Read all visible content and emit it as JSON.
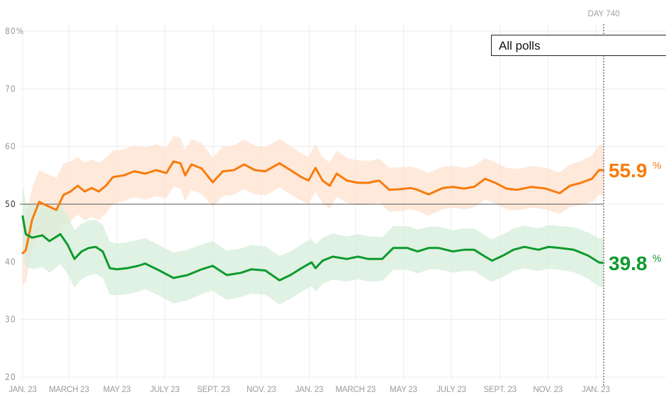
{
  "filter": {
    "selected": "All polls"
  },
  "chart_data": {
    "type": "line",
    "title": "",
    "xlabel": "",
    "ylabel": "",
    "ylim": [
      20,
      80
    ],
    "y_ticks": [
      20,
      30,
      40,
      50,
      60,
      70,
      80
    ],
    "y_tick_labels": [
      "20",
      "30",
      "40",
      "50",
      "60",
      "70",
      "80%"
    ],
    "x_range_days": [
      0,
      740
    ],
    "x_ticks": [
      {
        "day": 0,
        "label": "JAN. 23"
      },
      {
        "day": 59,
        "label": "MARCH 23"
      },
      {
        "day": 120,
        "label": "MAY 23"
      },
      {
        "day": 181,
        "label": "JULY 23"
      },
      {
        "day": 243,
        "label": "SEPT. 23"
      },
      {
        "day": 304,
        "label": "NOV. 23"
      },
      {
        "day": 365,
        "label": "JAN. 23"
      },
      {
        "day": 424,
        "label": "MARCH 23"
      },
      {
        "day": 485,
        "label": "MAY 23"
      },
      {
        "day": 546,
        "label": "JULY 23"
      },
      {
        "day": 608,
        "label": "SEPT. 23"
      },
      {
        "day": 669,
        "label": "NOV. 23"
      },
      {
        "day": 730,
        "label": "JAN. 23"
      }
    ],
    "reference_line": 50,
    "marker": {
      "day": 740,
      "label": "DAY 740"
    },
    "grid": true,
    "series": [
      {
        "name": "orange-series",
        "color": "#f87b0b",
        "band_color": "#fde2cf",
        "final_value": "55.9",
        "final_suffix": "%",
        "days": [
          0,
          4,
          12,
          21,
          30,
          43,
          52,
          61,
          70,
          79,
          88,
          97,
          106,
          115,
          129,
          142,
          156,
          170,
          183,
          192,
          201,
          207,
          215,
          228,
          242,
          255,
          269,
          282,
          296,
          309,
          327,
          341,
          355,
          364,
          373,
          382,
          391,
          400,
          413,
          427,
          440,
          454,
          467,
          481,
          494,
          503,
          517,
          535,
          548,
          562,
          575,
          589,
          602,
          616,
          630,
          648,
          666,
          684,
          697,
          711,
          725,
          734,
          740
        ],
        "values": [
          41.5,
          42,
          47.3,
          50.4,
          49.8,
          49,
          51.6,
          52.2,
          53.2,
          52.2,
          52.8,
          52.2,
          53.2,
          54.7,
          55,
          55.7,
          55.3,
          55.9,
          55.4,
          57.4,
          57.1,
          55,
          56.9,
          56.2,
          53.8,
          55.7,
          55.9,
          56.9,
          55.9,
          55.7,
          57.1,
          55.9,
          54.7,
          54.1,
          56.3,
          54.1,
          53.2,
          55.3,
          54.1,
          53.7,
          53.7,
          54.1,
          52.5,
          52.6,
          52.8,
          52.5,
          51.7,
          52.8,
          53,
          52.7,
          53,
          54.4,
          53.7,
          52.7,
          52.5,
          53,
          52.7,
          51.9,
          53.2,
          53.7,
          54.4,
          55.9,
          55.9
        ],
        "band_half_width": [
          5.5,
          5.5,
          5.5,
          5.5,
          5.5,
          5.5,
          5.5,
          5.2,
          5,
          5,
          5,
          5,
          4.8,
          4.6,
          4.5,
          4.5,
          4.5,
          4.5,
          4.4,
          4.4,
          4.4,
          4.4,
          4.4,
          4.4,
          4.3,
          4.3,
          4.3,
          4.3,
          4.2,
          4.2,
          4.2,
          4.2,
          4.1,
          4.1,
          4.1,
          4,
          4,
          4,
          3.9,
          3.9,
          3.8,
          3.8,
          3.8,
          3.8,
          3.7,
          3.7,
          3.7,
          3.7,
          3.6,
          3.6,
          3.6,
          3.6,
          3.6,
          3.6,
          3.6,
          3.6,
          3.6,
          3.6,
          3.7,
          3.8,
          4,
          4.3,
          4.5
        ]
      },
      {
        "name": "green-series",
        "color": "#0d9a2d",
        "band_color": "#d6edd9",
        "final_value": "39.8",
        "final_suffix": "%",
        "days": [
          0,
          4,
          12,
          25,
          34,
          48,
          57,
          66,
          75,
          84,
          93,
          102,
          111,
          120,
          133,
          147,
          156,
          174,
          192,
          210,
          228,
          242,
          251,
          260,
          278,
          291,
          309,
          327,
          341,
          355,
          368,
          373,
          382,
          395,
          413,
          427,
          440,
          458,
          472,
          490,
          503,
          517,
          530,
          548,
          562,
          575,
          589,
          598,
          612,
          625,
          639,
          657,
          670,
          684,
          702,
          720,
          734,
          740
        ],
        "values": [
          47.9,
          44.8,
          44.2,
          44.6,
          43.6,
          44.8,
          43,
          40.5,
          41.8,
          42.4,
          42.6,
          41.8,
          38.9,
          38.7,
          38.9,
          39.3,
          39.7,
          38.5,
          37.2,
          37.7,
          38.7,
          39.3,
          38.5,
          37.7,
          38.1,
          38.7,
          38.5,
          36.8,
          37.7,
          38.9,
          39.9,
          38.9,
          40.2,
          40.9,
          40.5,
          40.9,
          40.5,
          40.5,
          42.4,
          42.4,
          41.8,
          42.4,
          42.4,
          41.8,
          42.1,
          42.1,
          40.9,
          40.2,
          41.1,
          42.1,
          42.6,
          42.1,
          42.6,
          42.4,
          42.1,
          41.1,
          39.9,
          39.8
        ],
        "band_half_width": [
          5.5,
          5.5,
          5.5,
          5.5,
          5.5,
          5.2,
          5,
          5,
          4.8,
          4.8,
          4.7,
          4.6,
          4.6,
          4.5,
          4.5,
          4.5,
          4.4,
          4.4,
          4.4,
          4.4,
          4.3,
          4.3,
          4.3,
          4.3,
          4.2,
          4.2,
          4.2,
          4.2,
          4.1,
          4.1,
          4.1,
          4.1,
          4,
          4,
          3.9,
          3.9,
          3.9,
          3.8,
          3.8,
          3.8,
          3.8,
          3.7,
          3.7,
          3.7,
          3.7,
          3.7,
          3.7,
          3.7,
          3.7,
          3.7,
          3.7,
          3.7,
          3.8,
          3.8,
          3.9,
          4,
          4.2,
          4.3
        ]
      }
    ]
  }
}
